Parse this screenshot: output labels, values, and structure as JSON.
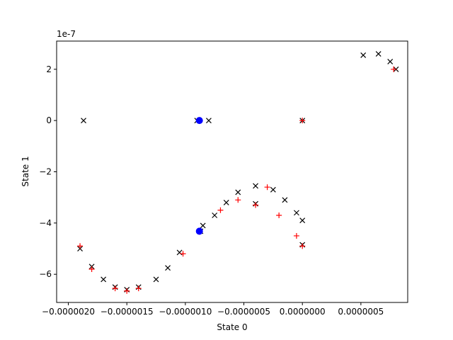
{
  "chart_data": {
    "type": "scatter",
    "title": "",
    "xlabel": "State 0",
    "ylabel": "State 1",
    "y_offset_text": "1e-7",
    "xlim": [
      -2.1e-06,
      9e-07
    ],
    "ylim": [
      -7.1,
      3.1
    ],
    "grid": false,
    "x_ticks": [
      {
        "value": -2e-06,
        "label": "−0.0000020"
      },
      {
        "value": -1.5e-06,
        "label": "−0.0000015"
      },
      {
        "value": -1e-06,
        "label": "−0.0000010"
      },
      {
        "value": -5e-07,
        "label": "−0.0000005"
      },
      {
        "value": 0.0,
        "label": "0.0000000"
      },
      {
        "value": 5e-07,
        "label": "0.0000005"
      }
    ],
    "y_ticks": [
      {
        "value": 2,
        "label": "2"
      },
      {
        "value": 0,
        "label": "0"
      },
      {
        "value": -2,
        "label": "−2"
      },
      {
        "value": -4,
        "label": "−4"
      },
      {
        "value": -6,
        "label": "−6"
      }
    ],
    "series": [
      {
        "marker": "x",
        "color": "#000000",
        "points": [
          [
            -1.87e-06,
            0.0
          ],
          [
            -9e-07,
            0.0
          ],
          [
            -8e-07,
            0.0
          ],
          [
            -8.7e-07,
            -4.32
          ],
          [
            -1.05e-06,
            -5.15
          ],
          [
            -1.15e-06,
            -5.75
          ],
          [
            -1.25e-06,
            -6.2
          ],
          [
            -1.4e-06,
            -6.5
          ],
          [
            -1.5e-06,
            -6.6
          ],
          [
            -1.6e-06,
            -6.5
          ],
          [
            -1.7e-06,
            -6.2
          ],
          [
            -1.8e-06,
            -5.7
          ],
          [
            -1.9e-06,
            -5.0
          ],
          [
            -8.5e-07,
            -4.1
          ],
          [
            -7.5e-07,
            -3.7
          ],
          [
            -6.5e-07,
            -3.2
          ],
          [
            -5.5e-07,
            -2.8
          ],
          [
            -4e-07,
            -2.55
          ],
          [
            -2.5e-07,
            -2.7
          ],
          [
            -1.5e-07,
            -3.1
          ],
          [
            -5e-08,
            -3.6
          ],
          [
            0.0,
            -3.9
          ],
          [
            -4e-07,
            -3.25
          ],
          [
            0.0,
            -4.85
          ],
          [
            0.0,
            0.0
          ],
          [
            5.2e-07,
            2.55
          ],
          [
            6.5e-07,
            2.6
          ],
          [
            7.5e-07,
            2.3
          ],
          [
            8e-07,
            2.0
          ]
        ]
      },
      {
        "marker": "+",
        "color": "#ff0000",
        "points": [
          [
            -1.9e-06,
            -4.9
          ],
          [
            -1.8e-06,
            -5.8
          ],
          [
            -1.6e-06,
            -6.55
          ],
          [
            -1.5e-06,
            -6.65
          ],
          [
            -1.4e-06,
            -6.55
          ],
          [
            -1.02e-06,
            -5.2
          ],
          [
            -8.8e-07,
            -4.35
          ],
          [
            -7e-07,
            -3.5
          ],
          [
            -5.5e-07,
            -3.1
          ],
          [
            -4e-07,
            -3.3
          ],
          [
            -2e-07,
            -3.7
          ],
          [
            -5e-08,
            -4.5
          ],
          [
            0.0,
            -4.9
          ],
          [
            -3e-07,
            -2.6
          ],
          [
            0.0,
            0.0
          ],
          [
            7.8e-07,
            2.0
          ]
        ]
      },
      {
        "marker": "o",
        "color": "#0000ff",
        "points": [
          [
            -8.8e-07,
            0.0
          ],
          [
            -8.8e-07,
            -4.32
          ]
        ]
      }
    ]
  }
}
